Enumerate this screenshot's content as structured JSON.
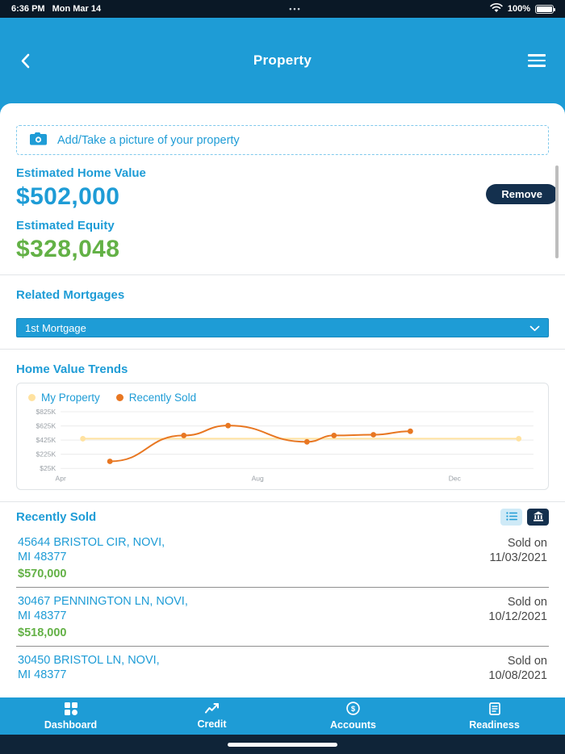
{
  "colors": {
    "primary": "#1E9CD6",
    "navy": "#14304E",
    "green": "#63B146",
    "status_bar": "#0A1826"
  },
  "status_bar": {
    "time": "6:36 PM",
    "date": "Mon Mar 14",
    "dots": "•••",
    "battery": "100%"
  },
  "header": {
    "title": "Property"
  },
  "photo_button": {
    "label": "Add/Take a picture of your property"
  },
  "estimates": {
    "home_value_label": "Estimated Home Value",
    "home_value": "$502,000",
    "remove_label": "Remove",
    "equity_label": "Estimated Equity",
    "equity": "$328,048"
  },
  "related_mortgages": {
    "title": "Related Mortgages",
    "selected_option": "1st Mortgage"
  },
  "trends": {
    "title": "Home Value Trends",
    "legend": [
      {
        "label": "My Property",
        "color": "#FFE2A0"
      },
      {
        "label": "Recently Sold",
        "color": "#E87722"
      }
    ]
  },
  "chart_data": {
    "type": "line",
    "title": "Home Value Trends",
    "xlabel": "months (Apr through Dec)",
    "ylabel": "home value",
    "x_range": [
      0,
      9.6
    ],
    "y_range": [
      25,
      825
    ],
    "y_unit": "$K",
    "grid": "horizontal",
    "legend_position": "top-left",
    "y_ticks": [
      {
        "v": 25,
        "label": "$25K"
      },
      {
        "v": 225,
        "label": "$225K"
      },
      {
        "v": 425,
        "label": "$425K"
      },
      {
        "v": 625,
        "label": "$625K"
      },
      {
        "v": 825,
        "label": "$825K"
      }
    ],
    "x_ticks": [
      {
        "v": 0,
        "label": "Apr"
      },
      {
        "v": 4,
        "label": "Aug"
      },
      {
        "v": 8,
        "label": "Dec"
      }
    ],
    "series": [
      {
        "name": "My Property",
        "color": "#FFE2A0",
        "point_style": "ends",
        "points": [
          [
            0.45,
            445
          ],
          [
            9.3,
            445
          ]
        ]
      },
      {
        "name": "Recently Sold",
        "color": "#E87722",
        "point_style": "all",
        "points": [
          [
            1.0,
            125
          ],
          [
            2.5,
            490
          ],
          [
            3.4,
            630
          ],
          [
            5.0,
            400
          ],
          [
            5.55,
            490
          ],
          [
            6.35,
            500
          ],
          [
            7.1,
            550
          ]
        ]
      }
    ]
  },
  "recently_sold": {
    "title": "Recently Sold",
    "items": [
      {
        "address1": "45644 BRISTOL CIR, NOVI,",
        "address2": "MI 48377",
        "price": "$570,000",
        "sold1": "Sold on",
        "sold2": "11/03/2021"
      },
      {
        "address1": "30467 PENNINGTON LN, NOVI,",
        "address2": "MI 48377",
        "price": "$518,000",
        "sold1": "Sold on",
        "sold2": "10/12/2021"
      },
      {
        "address1": "30450 BRISTOL LN, NOVI,",
        "address2": "MI 48377",
        "price": "",
        "sold1": "Sold on",
        "sold2": "10/08/2021"
      }
    ]
  },
  "bottom_nav": {
    "items": [
      {
        "label": "Dashboard"
      },
      {
        "label": "Credit"
      },
      {
        "label": "Accounts"
      },
      {
        "label": "Readiness"
      }
    ]
  }
}
